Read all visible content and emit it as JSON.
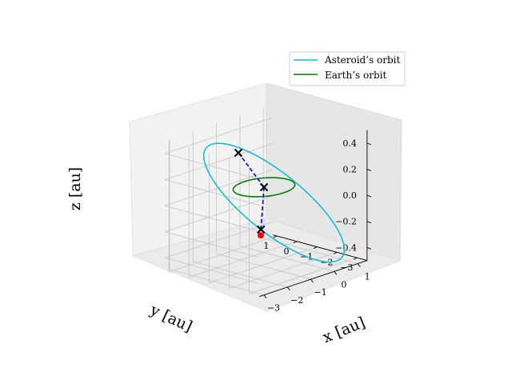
{
  "chart_data": {
    "type": "line",
    "projection": "3d",
    "legend_position": "upper-right",
    "grid": true,
    "xlabel": "x [au]",
    "ylabel": "y [au]",
    "zlabel": "z [au]",
    "xlim": [
      -3.2,
      1.4
    ],
    "ylim": [
      -3.5,
      1.2
    ],
    "zlim": [
      -0.5,
      0.5
    ],
    "xticks": [
      "-3",
      "-2",
      "-1",
      "0",
      "1"
    ],
    "yticks": [
      "-3",
      "-2",
      "-1",
      "0",
      "1"
    ],
    "zticks": [
      "-0.4",
      "-0.2",
      "0.0",
      "0.2",
      "0.4"
    ],
    "series": [
      {
        "name": "Asteroid's orbit",
        "color": "#17becf",
        "style": "solid",
        "label": "Asteroid’s orbit"
      },
      {
        "name": "Earth's orbit",
        "color": "#008000",
        "style": "solid",
        "label": "Earth’s orbit"
      }
    ],
    "markers": [
      {
        "kind": "x",
        "color": "#000000",
        "x": -0.27,
        "y": 0.96,
        "z": 0.24
      },
      {
        "kind": "x",
        "color": "#000000",
        "x": 0.0,
        "y": 0.0,
        "z": 0.0
      },
      {
        "kind": "x",
        "color": "#000000",
        "x": -1.2,
        "y": -1.25,
        "z": -0.2
      },
      {
        "kind": "dot",
        "color": "#ff0000",
        "x": -1.25,
        "y": -1.3,
        "z": -0.24
      }
    ],
    "connectors": [
      {
        "color": "#0000ff",
        "style": "dashed",
        "from": [
          -0.27,
          0.96,
          0.24
        ],
        "to": [
          0.0,
          0.0,
          0.0
        ]
      },
      {
        "color": "#0000ff",
        "style": "dashed",
        "from": [
          0.0,
          0.0,
          0.0
        ],
        "to": [
          -1.2,
          -1.25,
          -0.2
        ]
      }
    ]
  }
}
